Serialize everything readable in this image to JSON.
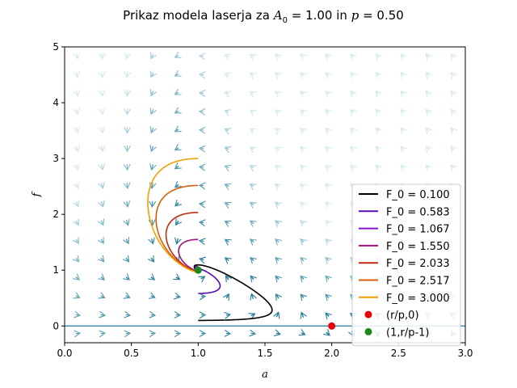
{
  "chart_data": {
    "type": "line",
    "title": "Prikaz modela laserja za A_0 = 1.00 in p = 0.50",
    "title_parts": {
      "prefix": "Prikaz modela laserja za ",
      "A": "A",
      "A_sub": "0",
      "mid": " = 1.00 in ",
      "p": "p",
      "suffix": " = 0.50"
    },
    "xlabel": "a",
    "ylabel": "f",
    "xlim": [
      0.0,
      3.0
    ],
    "ylim": [
      -0.3,
      5.0
    ],
    "xticks": [
      "0.0",
      "0.5",
      "1.0",
      "1.5",
      "2.0",
      "2.5",
      "3.0"
    ],
    "xtick_values": [
      0,
      0.5,
      1.0,
      1.5,
      2.0,
      2.5,
      3.0
    ],
    "yticks": [
      "0",
      "1",
      "2",
      "3",
      "4",
      "5"
    ],
    "ytick_values": [
      0,
      1,
      2,
      3,
      4,
      5
    ],
    "grid": false,
    "legend_position": "lower-right",
    "model": {
      "A0": 1.0,
      "p": 0.5,
      "r": 1.0
    },
    "streamplot": {
      "colormap": "teal-to-light-blue",
      "color_dark": "#1f7a99",
      "color_light": "#d4eaf0"
    },
    "series": [
      {
        "name": "F_0 = 0.100",
        "color": "#000000",
        "F0": 0.1
      },
      {
        "name": "F_0 = 0.583",
        "color": "#5a0fb5",
        "F0": 0.583
      },
      {
        "name": "F_0 = 1.067",
        "color": "#8a10c8",
        "F0": 1.067
      },
      {
        "name": "F_0 = 1.550",
        "color": "#a0107a",
        "F0": 1.55
      },
      {
        "name": "F_0 = 2.033",
        "color": "#c02a10",
        "F0": 2.033
      },
      {
        "name": "F_0 = 2.517",
        "color": "#d6600a",
        "F0": 2.517
      },
      {
        "name": "F_0 = 3.000",
        "color": "#f0a000",
        "F0": 3.0
      }
    ],
    "points": [
      {
        "name": "(r/p,0)",
        "color": "#e8000b",
        "x": 2.0,
        "y": 0.0
      },
      {
        "name": "(1,r/p-1)",
        "color": "#1a8a1a",
        "x": 1.0,
        "y": 1.0
      }
    ]
  }
}
